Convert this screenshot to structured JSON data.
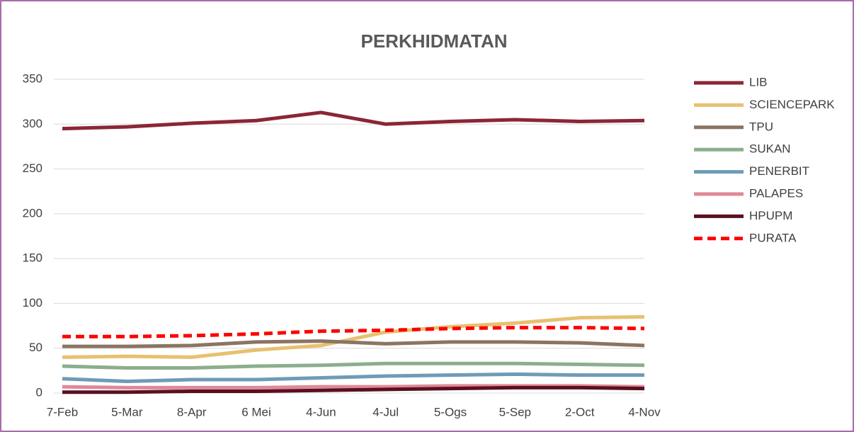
{
  "chart_data": {
    "type": "line",
    "title": "PERKHIDMATAN",
    "categories": [
      "7-Feb",
      "5-Mar",
      "8-Apr",
      "6 Mei",
      "4-Jun",
      "4-Jul",
      "5-Ogs",
      "5-Sep",
      "2-Oct",
      "4-Nov"
    ],
    "series": [
      {
        "name": "LIB",
        "color": "#8b2636",
        "values": [
          295,
          297,
          301,
          304,
          313,
          300,
          303,
          305,
          303,
          304
        ]
      },
      {
        "name": "SCIENCEPARK",
        "color": "#e8c070",
        "values": [
          40,
          41,
          40,
          48,
          53,
          68,
          74,
          78,
          84,
          85
        ]
      },
      {
        "name": "TPU",
        "color": "#8c7462",
        "values": [
          52,
          52,
          53,
          57,
          58,
          55,
          57,
          57,
          56,
          53
        ]
      },
      {
        "name": "SUKAN",
        "color": "#8cae8c",
        "values": [
          30,
          28,
          28,
          30,
          31,
          33,
          33,
          33,
          32,
          31
        ]
      },
      {
        "name": "PENERBIT",
        "color": "#6f9bb8",
        "values": [
          16,
          13,
          15,
          15,
          17,
          19,
          20,
          21,
          20,
          20
        ]
      },
      {
        "name": "PALAPES",
        "color": "#e08898",
        "values": [
          7,
          6,
          6,
          6,
          7,
          7,
          8,
          8,
          8,
          7
        ]
      },
      {
        "name": "HPUPM",
        "color": "#5a1020",
        "values": [
          1,
          1,
          2,
          2,
          3,
          4,
          5,
          6,
          6,
          5
        ]
      },
      {
        "name": "PURATA",
        "color": "#ff0000",
        "dashed": true,
        "values": [
          63,
          63,
          64,
          66,
          69,
          70,
          72,
          73,
          73,
          72
        ]
      }
    ],
    "ylim": [
      0,
      350
    ],
    "yticks": [
      0,
      50,
      100,
      150,
      200,
      250,
      300,
      350
    ],
    "grid": true,
    "legend": "right"
  }
}
